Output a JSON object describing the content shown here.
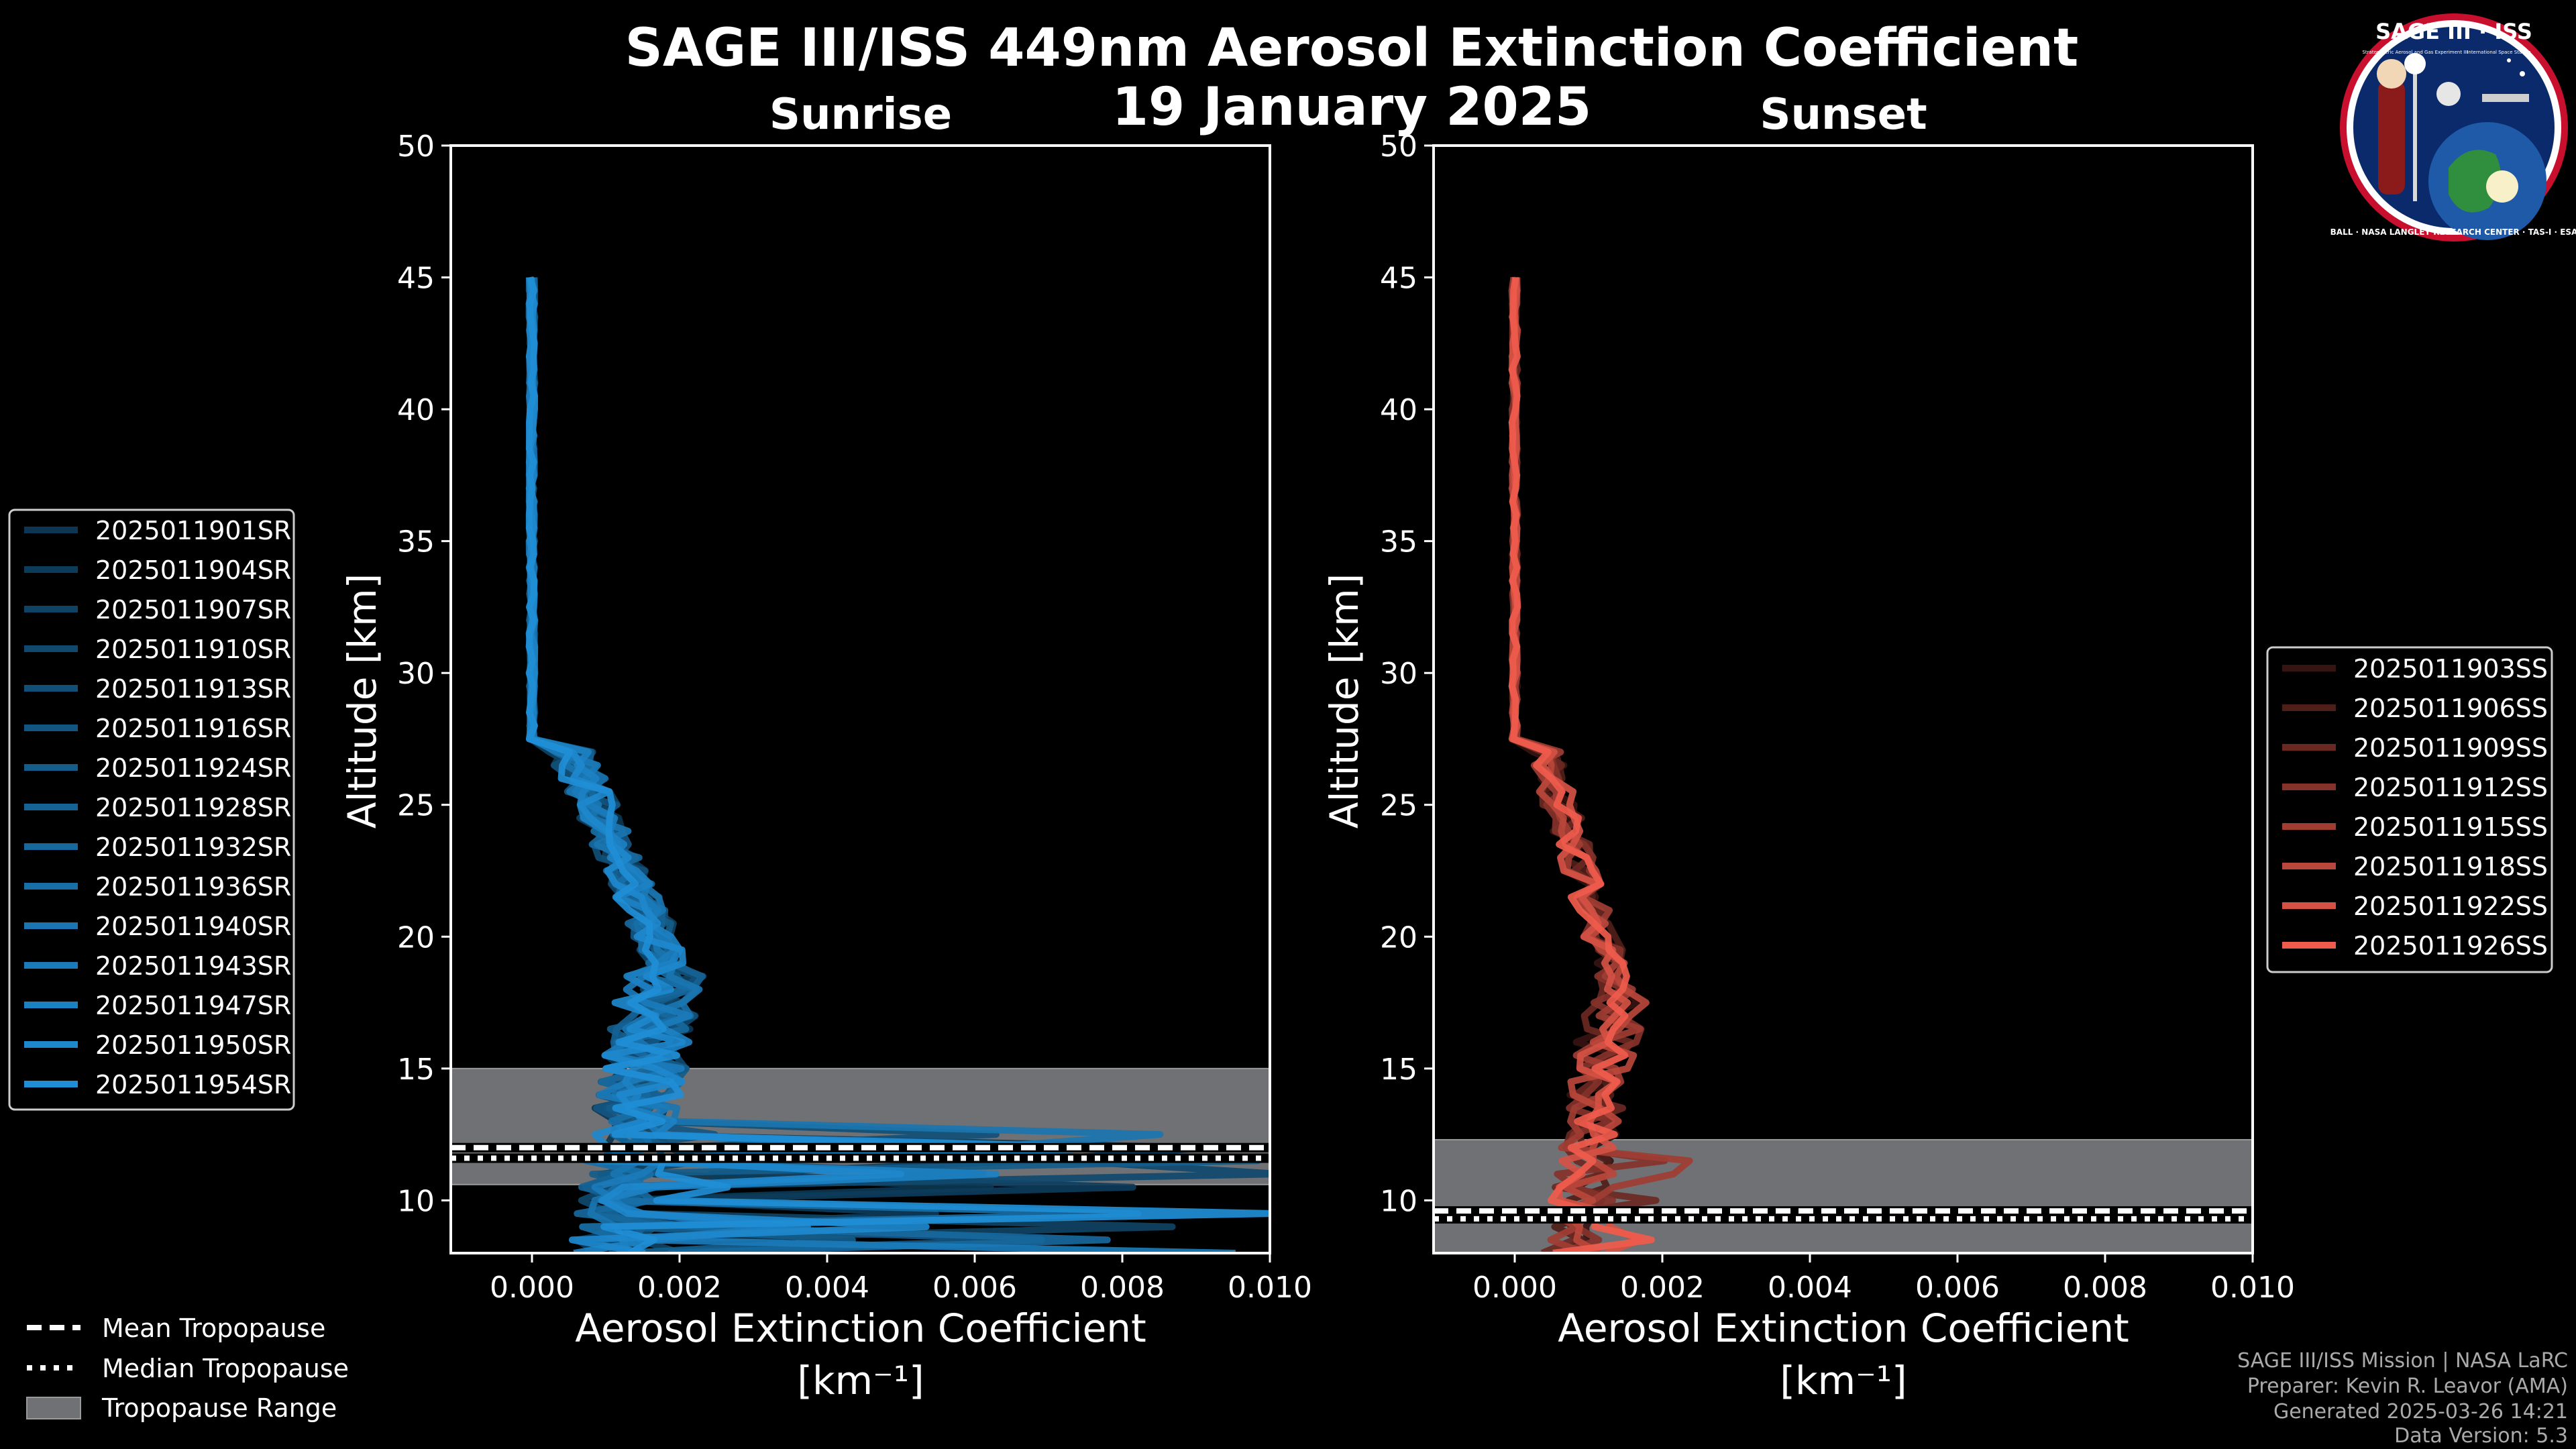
{
  "title_line1": "SAGE III/ISS 449nm Aerosol Extinction Coefficient",
  "title_line2": "19 January 2025",
  "logo": {
    "text": "SAGE III · ISS",
    "small1": "Stratospheric Aerosol and Gas Experiment III",
    "small2": "International Space Station",
    "ring": "BALL · NASA LANGLEY RESEARCH CENTER · TAS-I · ESA"
  },
  "colors": {
    "sunrise": "#1f8ed6",
    "sunset": "#ef5b4c",
    "trop_range": "#6f7174",
    "axis": "#ffffff"
  },
  "chart_data": [
    {
      "type": "line",
      "title": "Sunrise",
      "xlabel": "Aerosol Extinction Coefficient",
      "xunit": "[km⁻¹]",
      "ylabel": "Altitude [km]",
      "xlim": [
        -0.0011,
        0.01
      ],
      "ylim": [
        8,
        50
      ],
      "xticks": [
        "0.000",
        "0.002",
        "0.004",
        "0.006",
        "0.008",
        "0.010"
      ],
      "xtick_values": [
        0,
        0.002,
        0.004,
        0.006,
        0.008,
        0.01
      ],
      "yticks": [
        10,
        15,
        20,
        25,
        30,
        35,
        40,
        45,
        50
      ],
      "tropopause": {
        "range": [
          10.6,
          15.0
        ],
        "mean": 12.0,
        "median": 11.6
      },
      "series_names": [
        "2025011901SR",
        "2025011904SR",
        "2025011907SR",
        "2025011910SR",
        "2025011913SR",
        "2025011916SR",
        "2025011924SR",
        "2025011928SR",
        "2025011932SR",
        "2025011936SR",
        "2025011940SR",
        "2025011943SR",
        "2025011947SR",
        "2025011950SR",
        "2025011954SR"
      ],
      "peak": {
        "alt": 18.8,
        "value": 0.0021
      },
      "low_tail_max": 0.0102
    },
    {
      "type": "line",
      "title": "Sunset",
      "xlabel": "Aerosol Extinction Coefficient",
      "xunit": "[km⁻¹]",
      "ylabel": "Altitude [km]",
      "xlim": [
        -0.0011,
        0.01
      ],
      "ylim": [
        8,
        50
      ],
      "xticks": [
        "0.000",
        "0.002",
        "0.004",
        "0.006",
        "0.008",
        "0.010"
      ],
      "xtick_values": [
        0,
        0.002,
        0.004,
        0.006,
        0.008,
        0.01
      ],
      "yticks": [
        10,
        15,
        20,
        25,
        30,
        35,
        40,
        45,
        50
      ],
      "tropopause": {
        "range": [
          8.0,
          12.3
        ],
        "mean": 9.6,
        "median": 9.3
      },
      "series_names": [
        "2025011903SS",
        "2025011906SS",
        "2025011909SS",
        "2025011912SS",
        "2025011915SS",
        "2025011918SS",
        "2025011922SS",
        "2025011926SS"
      ],
      "peak": {
        "alt": 17.5,
        "value": 0.0016
      },
      "low_tail_max": 0.0026
    }
  ],
  "tropopause_legend": {
    "mean": "Mean Tropopause",
    "median": "Median Tropopause",
    "range": "Tropopause Range"
  },
  "credits": [
    "SAGE III/ISS Mission | NASA LaRC",
    "Preparer: Kevin R. Leavor (AMA)",
    "Generated 2025-03-26 14:21",
    "Data Version: 5.3"
  ]
}
